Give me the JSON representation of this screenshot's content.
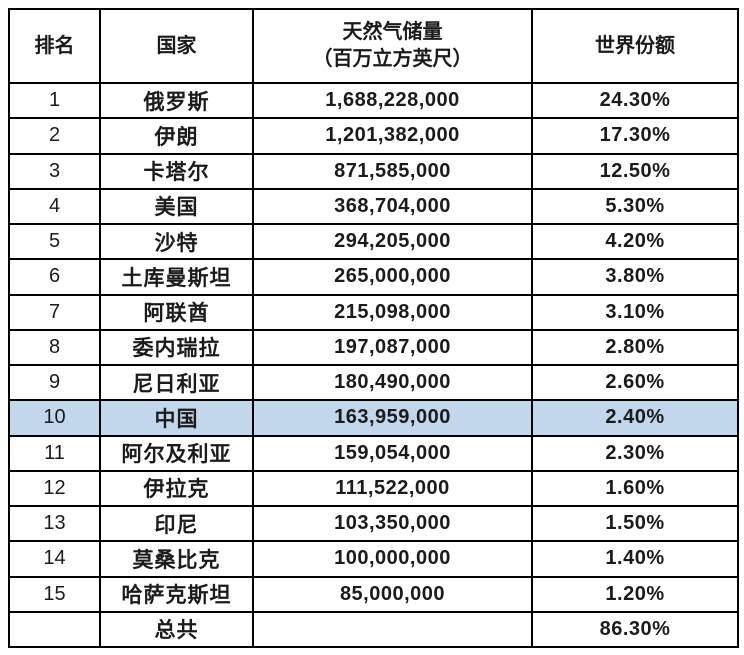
{
  "table": {
    "headers": {
      "rank": "排名",
      "country": "国家",
      "reserves_line1": "天然气储量",
      "reserves_line2": "（百万立方英尺）",
      "share": "世界份额"
    },
    "rows": [
      {
        "rank": "1",
        "country": "俄罗斯",
        "reserves": "1,688,228,000",
        "share": "24.30%",
        "highlight": false
      },
      {
        "rank": "2",
        "country": "伊朗",
        "reserves": "1,201,382,000",
        "share": "17.30%",
        "highlight": false
      },
      {
        "rank": "3",
        "country": "卡塔尔",
        "reserves": "871,585,000",
        "share": "12.50%",
        "highlight": false
      },
      {
        "rank": "4",
        "country": "美国",
        "reserves": "368,704,000",
        "share": "5.30%",
        "highlight": false
      },
      {
        "rank": "5",
        "country": "沙特",
        "reserves": "294,205,000",
        "share": "4.20%",
        "highlight": false
      },
      {
        "rank": "6",
        "country": "土库曼斯坦",
        "reserves": "265,000,000",
        "share": "3.80%",
        "highlight": false
      },
      {
        "rank": "7",
        "country": "阿联酋",
        "reserves": "215,098,000",
        "share": "3.10%",
        "highlight": false
      },
      {
        "rank": "8",
        "country": "委内瑞拉",
        "reserves": "197,087,000",
        "share": "2.80%",
        "highlight": false
      },
      {
        "rank": "9",
        "country": "尼日利亚",
        "reserves": "180,490,000",
        "share": "2.60%",
        "highlight": false
      },
      {
        "rank": "10",
        "country": "中国",
        "reserves": "163,959,000",
        "share": "2.40%",
        "highlight": true
      },
      {
        "rank": "11",
        "country": "阿尔及利亚",
        "reserves": "159,054,000",
        "share": "2.30%",
        "highlight": false
      },
      {
        "rank": "12",
        "country": "伊拉克",
        "reserves": "111,522,000",
        "share": "1.60%",
        "highlight": false
      },
      {
        "rank": "13",
        "country": "印尼",
        "reserves": "103,350,000",
        "share": "1.50%",
        "highlight": false
      },
      {
        "rank": "14",
        "country": "莫桑比克",
        "reserves": "100,000,000",
        "share": "1.40%",
        "highlight": false
      },
      {
        "rank": "15",
        "country": "哈萨克斯坦",
        "reserves": "85,000,000",
        "share": "1.20%",
        "highlight": false
      },
      {
        "rank": "",
        "country": "总共",
        "reserves": "",
        "share": "86.30%",
        "highlight": false,
        "is_total": true
      }
    ]
  },
  "colors": {
    "highlight_row": "#c3d7ec",
    "border": "#000000",
    "text": "#1b1b1b",
    "background": "#ffffff"
  },
  "chart_data": {
    "type": "table",
    "title": "",
    "columns": [
      "排名",
      "国家",
      "天然气储量（百万立方英尺）",
      "世界份额"
    ],
    "rows": [
      [
        1,
        "俄罗斯",
        1688228000,
        "24.30%"
      ],
      [
        2,
        "伊朗",
        1201382000,
        "17.30%"
      ],
      [
        3,
        "卡塔尔",
        871585000,
        "12.50%"
      ],
      [
        4,
        "美国",
        368704000,
        "5.30%"
      ],
      [
        5,
        "沙特",
        294205000,
        "4.20%"
      ],
      [
        6,
        "土库曼斯坦",
        265000000,
        "3.80%"
      ],
      [
        7,
        "阿联酋",
        215098000,
        "3.10%"
      ],
      [
        8,
        "委内瑞拉",
        197087000,
        "2.80%"
      ],
      [
        9,
        "尼日利亚",
        180490000,
        "2.60%"
      ],
      [
        10,
        "中国",
        163959000,
        "2.40%"
      ],
      [
        11,
        "阿尔及利亚",
        159054000,
        "2.30%"
      ],
      [
        12,
        "伊拉克",
        111522000,
        "1.60%"
      ],
      [
        13,
        "印尼",
        103350000,
        "1.50%"
      ],
      [
        14,
        "莫桑比克",
        100000000,
        "1.40%"
      ],
      [
        15,
        "哈萨克斯坦",
        85000000,
        "1.20%"
      ]
    ],
    "total_row": [
      "",
      "总共",
      "",
      "86.30%"
    ],
    "highlighted_row_rank": 10,
    "layout_hints": {
      "grid": true,
      "header_bold": true,
      "highlight_color": "#c3d7ec"
    }
  }
}
